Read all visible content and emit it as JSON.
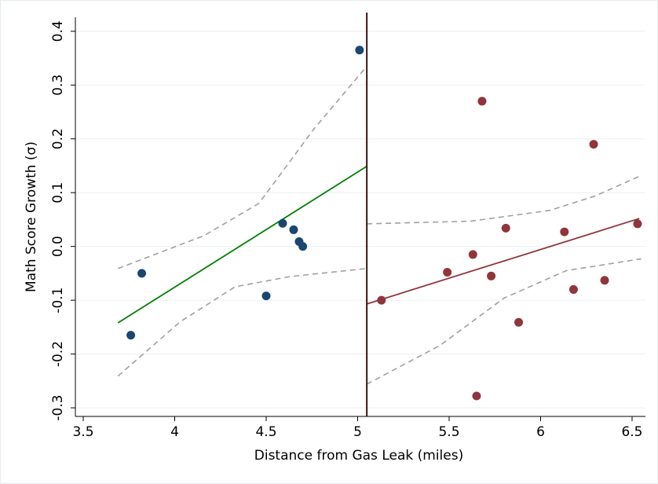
{
  "chart_data": {
    "type": "scatter",
    "x_label": "Distance from Gas Leak (miles)",
    "y_label": "Math Score Growth (σ)",
    "xlim": [
      3.457,
      6.573
    ],
    "ylim": [
      -0.316,
      0.426
    ],
    "xticks": [
      3.5,
      4,
      4.5,
      5,
      5.5,
      6,
      6.5
    ],
    "yticks": [
      0.4,
      0.3,
      0.2,
      0.1,
      {
        "value": 0,
        "label": "0.0"
      },
      -0.1,
      -0.2,
      -0.3
    ],
    "grid": true,
    "cutoff": 5.05,
    "cutoff_color": "#3a1214",
    "series": [
      {
        "type": "scatter",
        "color": "#1a476f",
        "x": [
          3.76,
          3.82,
          4.5,
          4.59,
          4.65,
          4.68,
          4.7,
          5.01
        ],
        "values": [
          -0.165,
          -0.05,
          -0.092,
          0.043,
          0.031,
          0.009,
          0.0,
          0.365
        ]
      },
      {
        "type": "scatter",
        "color": "#90353b",
        "x": [
          5.13,
          5.49,
          5.63,
          5.65,
          5.68,
          5.73,
          5.81,
          5.88,
          6.13,
          6.18,
          6.29,
          6.35,
          6.53
        ],
        "values": [
          -0.1,
          -0.048,
          -0.015,
          -0.278,
          0.27,
          -0.055,
          0.034,
          -0.141,
          0.027,
          -0.08,
          0.19,
          -0.063,
          0.042
        ]
      },
      {
        "type": "line",
        "color": "#008000",
        "dashed": false,
        "x": [
          3.69,
          5.05
        ],
        "values": [
          -0.142,
          0.149
        ]
      },
      {
        "type": "line",
        "color": "#90353b",
        "dashed": false,
        "x": [
          5.05,
          6.54
        ],
        "values": [
          -0.107,
          0.052
        ]
      },
      {
        "type": "line",
        "color": "#a0a0a0",
        "dashed": true,
        "x": [
          3.69,
          4.16,
          4.46,
          4.76,
          5.05
        ],
        "values": [
          -0.041,
          0.02,
          0.08,
          0.218,
          0.335
        ]
      },
      {
        "type": "line",
        "color": "#a0a0a0",
        "dashed": true,
        "x": [
          3.69,
          4.03,
          4.33,
          4.63,
          5.05
        ],
        "values": [
          -0.241,
          -0.14,
          -0.075,
          -0.056,
          -0.041
        ]
      },
      {
        "type": "line",
        "color": "#a0a0a0",
        "dashed": true,
        "x": [
          5.05,
          5.62,
          6.05,
          6.3,
          6.55
        ],
        "values": [
          0.042,
          0.047,
          0.067,
          0.094,
          0.132
        ]
      },
      {
        "type": "line",
        "color": "#a0a0a0",
        "dashed": true,
        "x": [
          5.05,
          5.45,
          5.8,
          6.14,
          6.55
        ],
        "values": [
          -0.256,
          -0.184,
          -0.096,
          -0.045,
          -0.023
        ]
      }
    ]
  }
}
